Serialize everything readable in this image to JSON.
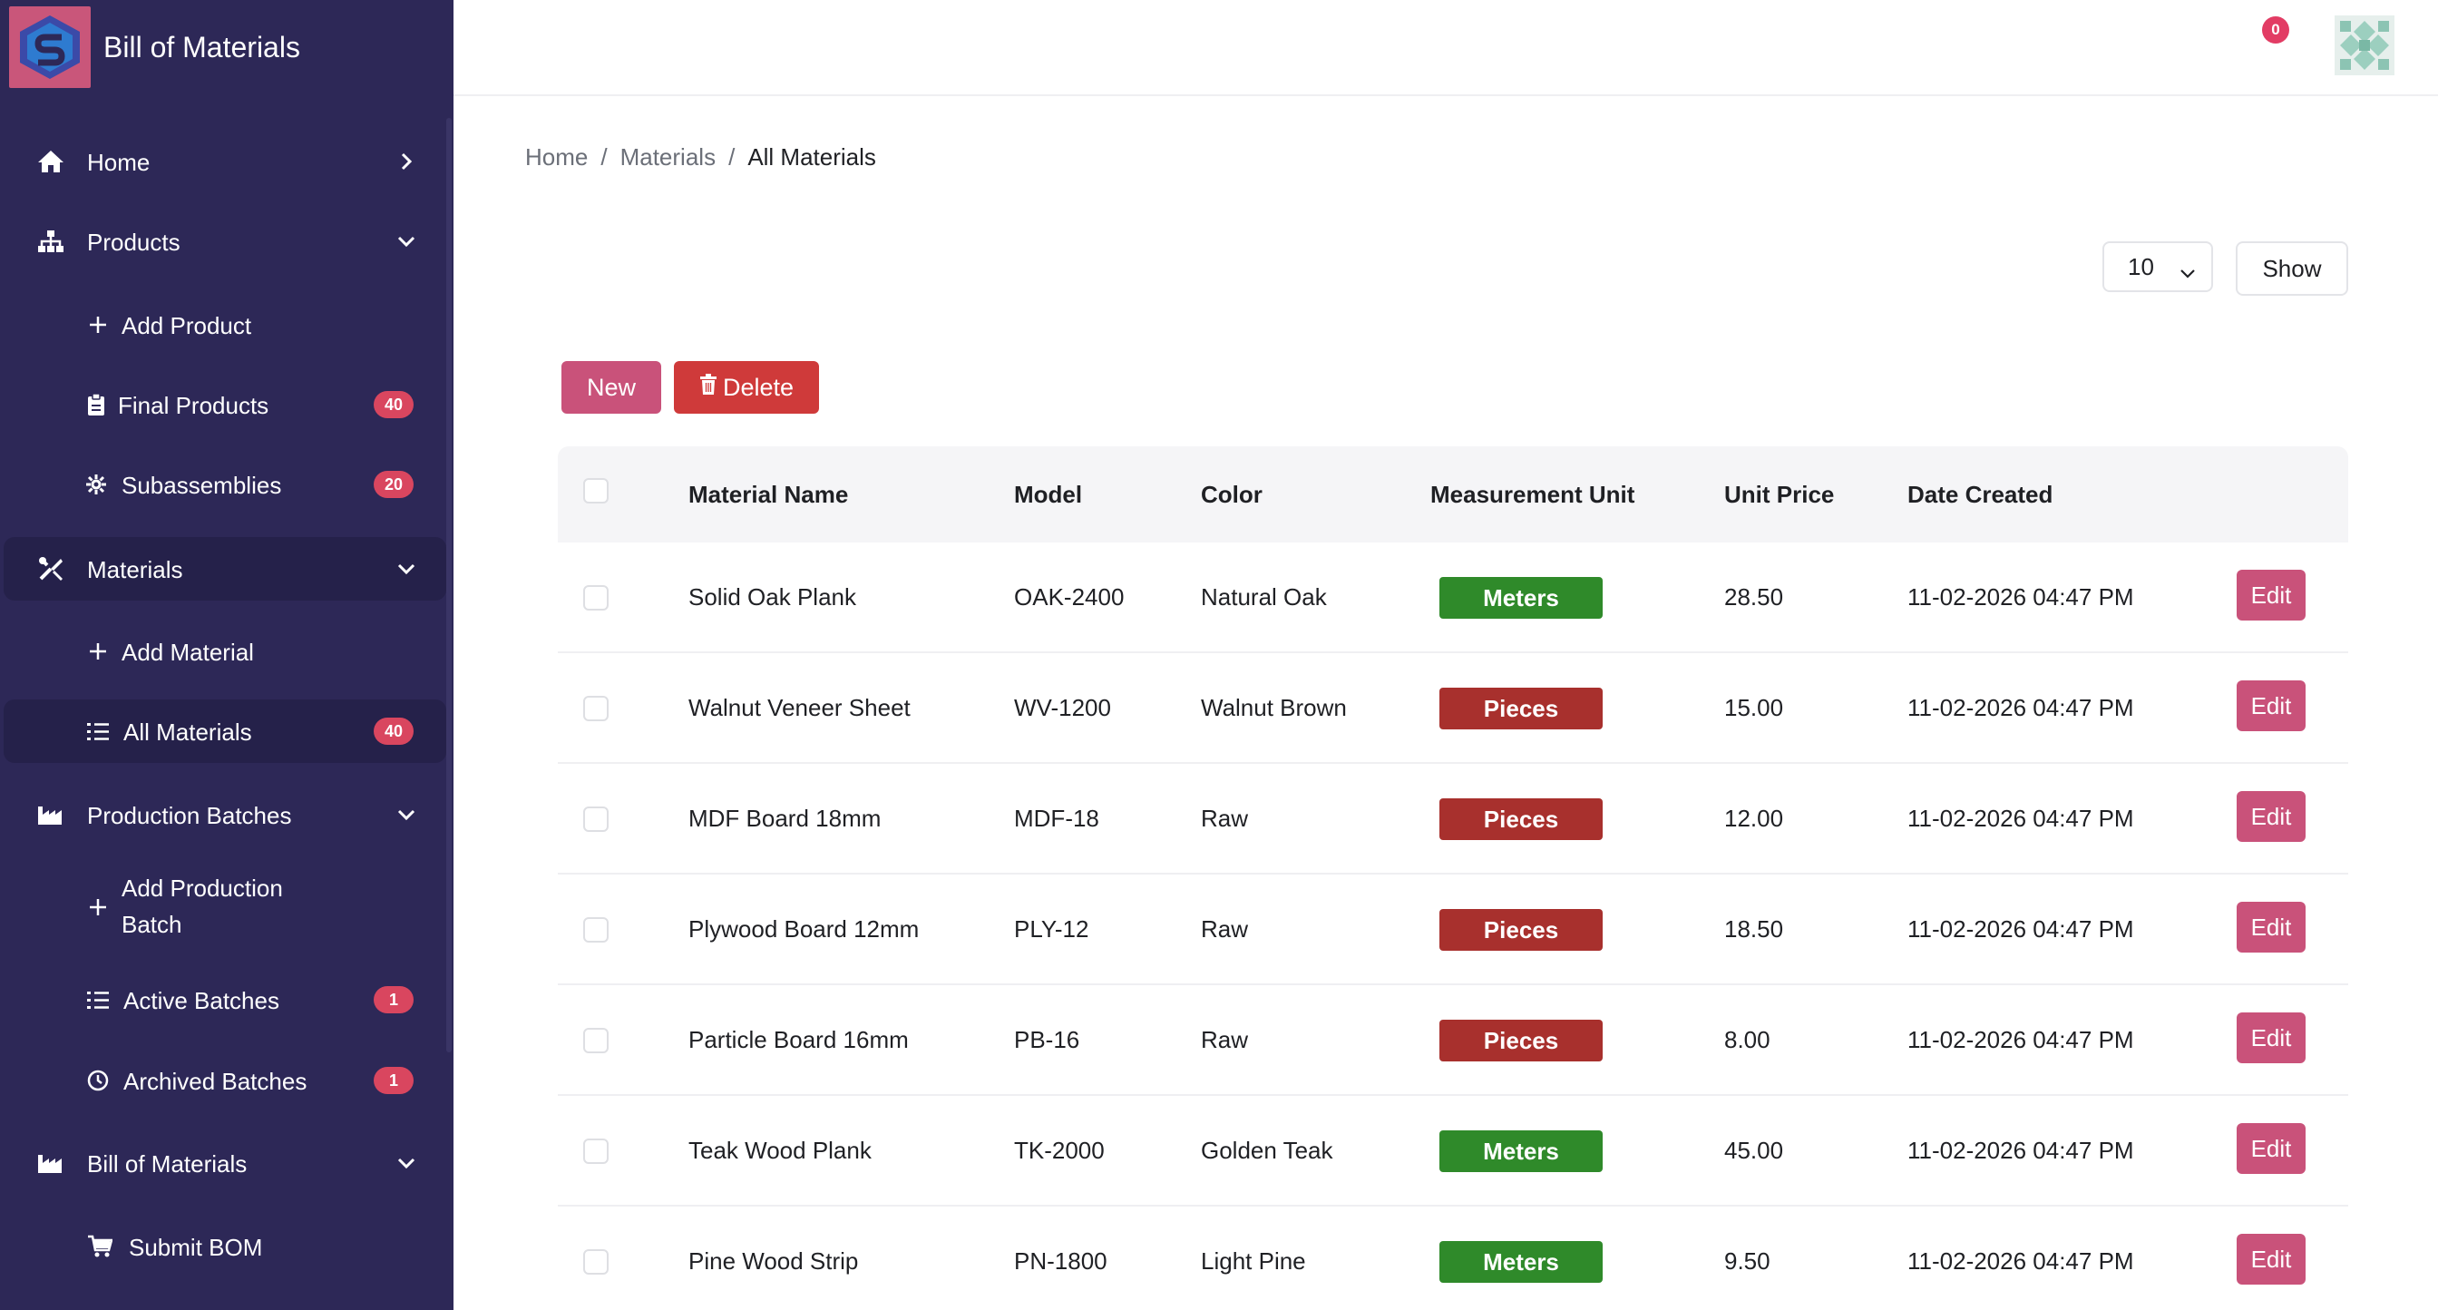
{
  "app": {
    "title": "Bill of Materials"
  },
  "colors": {
    "sidebar_bg": "#2d2857",
    "accent": "#c9527a",
    "danger": "#cf3a3a",
    "meters": "#2f8a2a",
    "pieces": "#a8302d",
    "badge": "#d9465f"
  },
  "header": {
    "notification_count": "0"
  },
  "sidebar": {
    "items": [
      {
        "label": "Home",
        "icon": "home-icon"
      },
      {
        "label": "Products",
        "icon": "sitemap-icon"
      },
      {
        "label": "Add Product",
        "icon": "plus-icon"
      },
      {
        "label": "Final Products",
        "icon": "clipboard-icon",
        "badge": "40"
      },
      {
        "label": "Subassemblies",
        "icon": "cog-icon",
        "badge": "20"
      },
      {
        "label": "Materials",
        "icon": "tools-icon"
      },
      {
        "label": "Add Material",
        "icon": "plus-icon"
      },
      {
        "label": "All Materials",
        "icon": "list-icon",
        "badge": "40"
      },
      {
        "label": "Production Batches",
        "icon": "industry-icon"
      },
      {
        "label": "Add Production",
        "label2": "Batch",
        "icon": "plus-icon"
      },
      {
        "label": "Active Batches",
        "icon": "list-icon",
        "badge": "1"
      },
      {
        "label": "Archived Batches",
        "icon": "clock-icon",
        "badge": "1"
      },
      {
        "label": "Bill of Materials",
        "icon": "industry-icon"
      },
      {
        "label": "Submit BOM",
        "icon": "cart-icon"
      }
    ]
  },
  "breadcrumb": {
    "home": "Home",
    "materials": "Materials",
    "current": "All Materials",
    "separator": "/"
  },
  "toolbar": {
    "page_size": "10",
    "show_label": "Show",
    "new_label": "New",
    "delete_label": "Delete"
  },
  "table": {
    "headers": {
      "name": "Material Name",
      "model": "Model",
      "color": "Color",
      "unit": "Measurement Unit",
      "price": "Unit Price",
      "date": "Date Created"
    },
    "edit_label": "Edit",
    "rows": [
      {
        "name": "Solid Oak Plank",
        "model": "OAK-2400",
        "color": "Natural Oak",
        "unit": "Meters",
        "price": "28.50",
        "date": "11-02-2026 04:47 PM"
      },
      {
        "name": "Walnut Veneer Sheet",
        "model": "WV-1200",
        "color": "Walnut Brown",
        "unit": "Pieces",
        "price": "15.00",
        "date": "11-02-2026 04:47 PM"
      },
      {
        "name": "MDF Board 18mm",
        "model": "MDF-18",
        "color": "Raw",
        "unit": "Pieces",
        "price": "12.00",
        "date": "11-02-2026 04:47 PM"
      },
      {
        "name": "Plywood Board 12mm",
        "model": "PLY-12",
        "color": "Raw",
        "unit": "Pieces",
        "price": "18.50",
        "date": "11-02-2026 04:47 PM"
      },
      {
        "name": "Particle Board 16mm",
        "model": "PB-16",
        "color": "Raw",
        "unit": "Pieces",
        "price": "8.00",
        "date": "11-02-2026 04:47 PM"
      },
      {
        "name": "Teak Wood Plank",
        "model": "TK-2000",
        "color": "Golden Teak",
        "unit": "Meters",
        "price": "45.00",
        "date": "11-02-2026 04:47 PM"
      },
      {
        "name": "Pine Wood Strip",
        "model": "PN-1800",
        "color": "Light Pine",
        "unit": "Meters",
        "price": "9.50",
        "date": "11-02-2026 04:47 PM"
      }
    ]
  }
}
